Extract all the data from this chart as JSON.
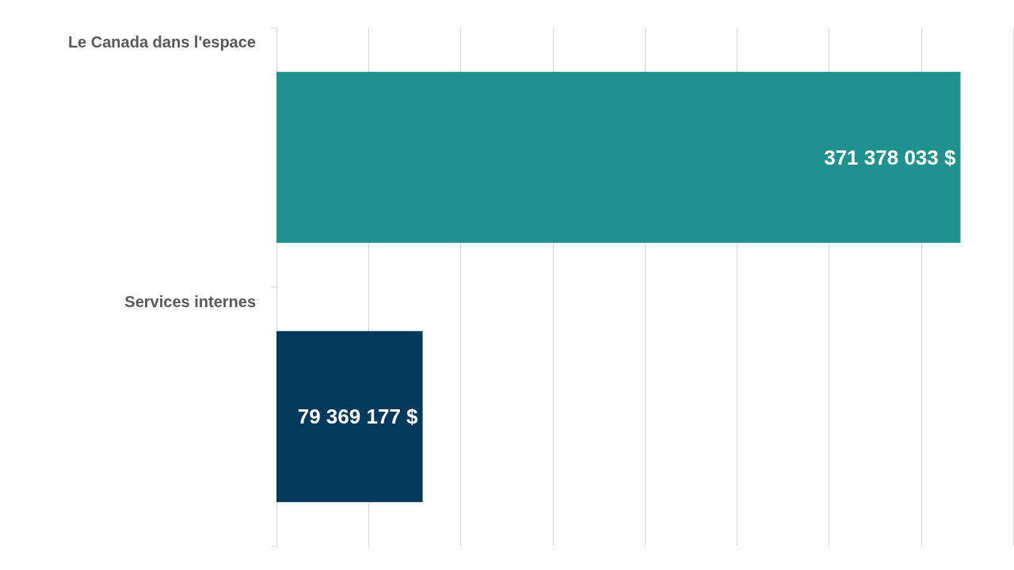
{
  "chart_data": {
    "type": "bar",
    "orientation": "horizontal",
    "categories": [
      "Le Canada dans l'espace",
      "Services internes"
    ],
    "values": [
      371378033,
      79369177
    ],
    "colors": [
      "#1f9290",
      "#02395d"
    ],
    "value_labels": [
      "371 378 033 $",
      "79 369 177 $"
    ],
    "xlim": [
      0,
      400000000
    ],
    "xticks": [
      {
        "value": 0,
        "label": null
      },
      {
        "value": 50000000,
        "label": null
      },
      {
        "value": 100000000,
        "label": null
      },
      {
        "value": 150000000,
        "label": null
      },
      {
        "value": 200000000,
        "label": null
      },
      {
        "value": 250000000,
        "label": null
      },
      {
        "value": 300000000,
        "label": null
      },
      {
        "value": 350000000,
        "label": null
      },
      {
        "value": 400000000,
        "label": null
      }
    ],
    "grid": "x",
    "tick_labels": "y"
  }
}
